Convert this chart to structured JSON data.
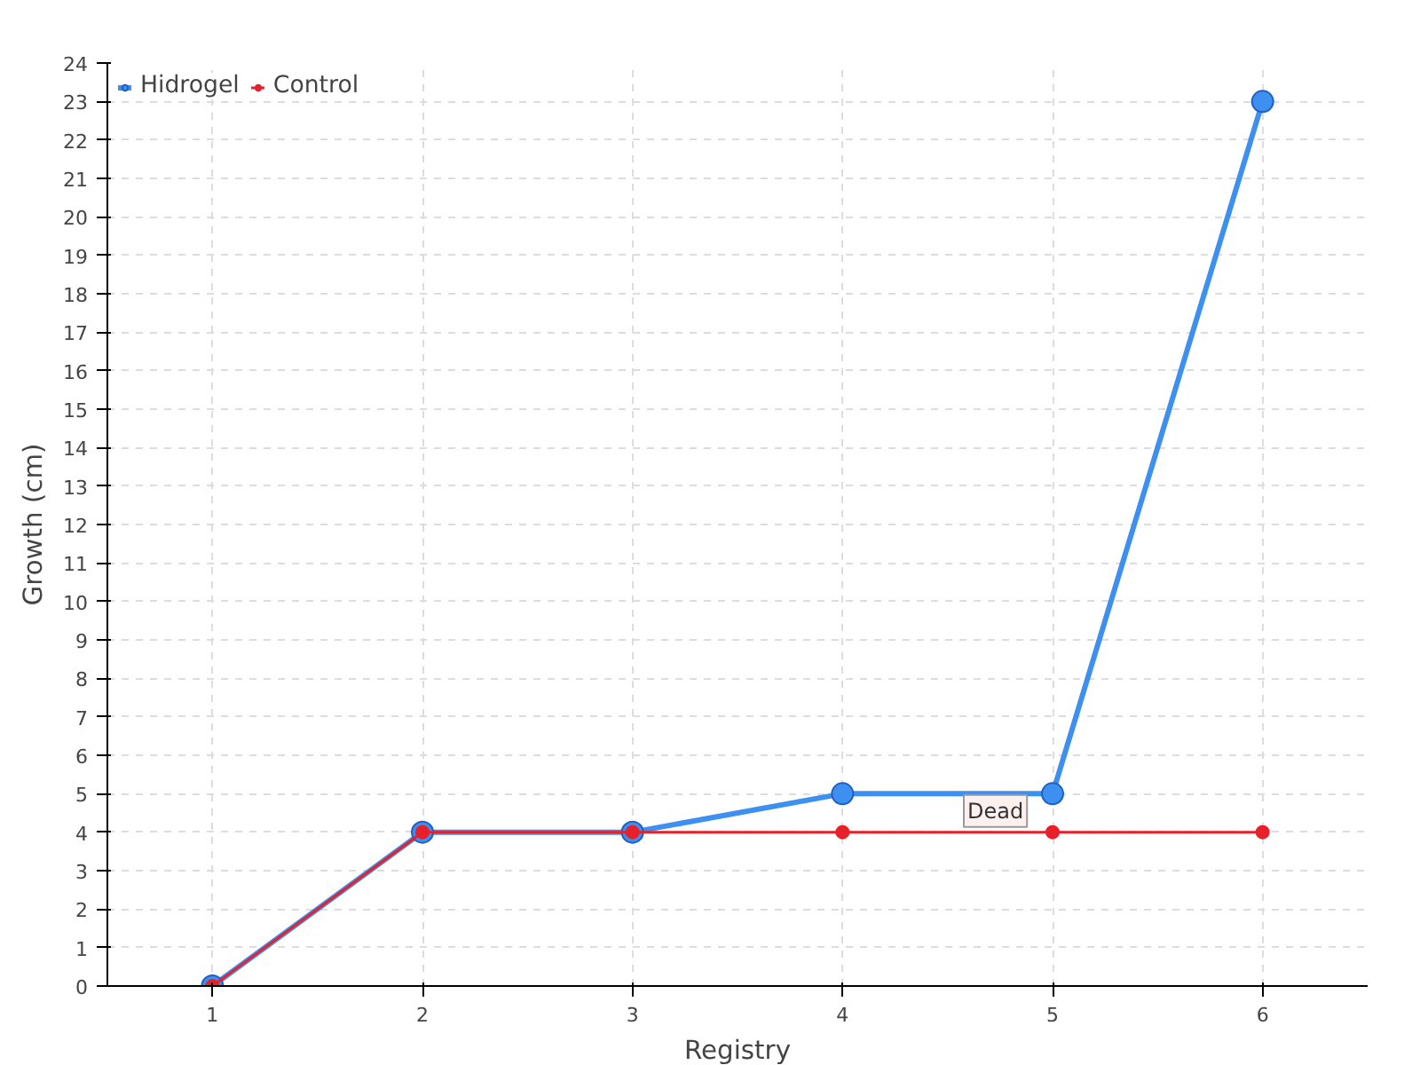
{
  "chart_data": {
    "type": "line",
    "xlabel": "Registry",
    "ylabel": "Growth (cm)",
    "x": [
      1,
      2,
      3,
      4,
      5,
      6
    ],
    "series": [
      {
        "name": "Hidrogel",
        "color": "#3d8ff0",
        "values": [
          0,
          4,
          4,
          5,
          5,
          23
        ]
      },
      {
        "name": "Control",
        "color": "#e8202a",
        "values": [
          0,
          4,
          4,
          4,
          4,
          4
        ]
      }
    ],
    "xlim": [
      0.5,
      6.5
    ],
    "xticks": [
      1,
      2,
      3,
      4,
      5,
      6
    ],
    "ylim": [
      0,
      24
    ],
    "yticks": [
      0,
      1,
      2,
      3,
      4,
      5,
      6,
      7,
      8,
      9,
      10,
      11,
      12,
      13,
      14,
      15,
      16,
      17,
      18,
      19,
      20,
      21,
      22,
      23,
      24
    ],
    "grid": true,
    "legend": "top left",
    "marker": "circle",
    "line_style": "solid",
    "annotations": [
      {
        "text": "Dead",
        "x": 5,
        "y": 4
      }
    ]
  }
}
